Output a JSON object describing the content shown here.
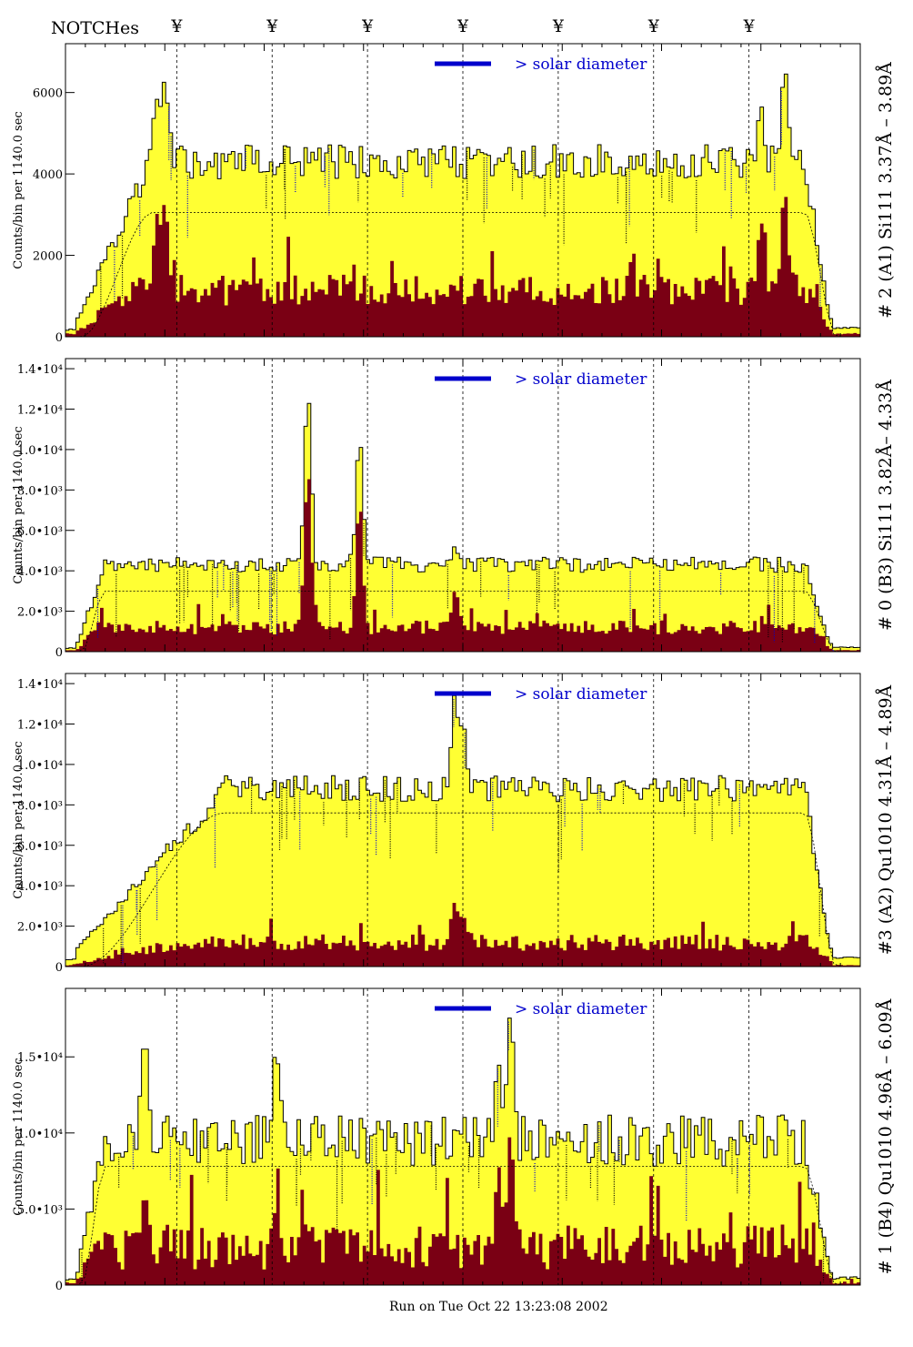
{
  "page": {
    "notches_label": "NOTCHes",
    "notch_marker": "¥",
    "footer": "Run on Tue Oct 22 13:23:08 2002"
  },
  "colors": {
    "total_fill": "#ffff33",
    "excess_fill": "#7a0014",
    "legend_bar": "#0000cc",
    "legend_text": "#0000cc",
    "label_dark": "#000000",
    "label_blue": "#0000cc",
    "label_purple": "#660099"
  },
  "chart_data": [
    {
      "type": "area",
      "panel_label": "# 2 (A1) Si111  3.37Å – 3.89Å",
      "ylabel": "Counts/bin per   1140.0 sec",
      "legend": "> solar diameter",
      "ylim": [
        0,
        7200
      ],
      "yticks": [
        {
          "v": 0,
          "t": "0"
        },
        {
          "v": 2000,
          "t": "2000"
        },
        {
          "v": 4000,
          "t": "4000"
        },
        {
          "v": 6000,
          "t": "6000"
        }
      ],
      "total_level": 4300,
      "total_noise": 420,
      "total_rise_edge": 0.11,
      "excess_level": 1150,
      "excess_noise": 380,
      "envelope_level": 3050,
      "peaks": [
        {
          "x": 0.115,
          "total": 5800,
          "excess": 3000
        },
        {
          "x": 0.125,
          "total": 6300,
          "excess": 3300
        },
        {
          "x": 0.905,
          "total": 6600,
          "excess": 3500
        },
        {
          "x": 0.875,
          "total": 5700,
          "excess": 2800
        }
      ]
    },
    {
      "type": "area",
      "panel_label": "# 0 (B3) Si111  3.82Å– 4.33Å",
      "ylabel": "Counts/bin per   1140.0 sec",
      "legend": "> solar diameter",
      "ylim": [
        0,
        14500
      ],
      "yticks": [
        {
          "v": 0,
          "t": "0"
        },
        {
          "v": 2000,
          "t": "2.0•10³"
        },
        {
          "v": 4000,
          "t": "4.0•10³"
        },
        {
          "v": 6000,
          "t": "6.0•10³"
        },
        {
          "v": 8000,
          "t": "8.0•10³"
        },
        {
          "v": 10000,
          "t": "1.0•10⁴"
        },
        {
          "v": 12000,
          "t": "1.2•10⁴"
        },
        {
          "v": 14000,
          "t": "1.4•10⁴"
        }
      ],
      "total_level": 4300,
      "total_noise": 380,
      "total_rise_edge": 0.05,
      "excess_level": 1200,
      "excess_noise": 350,
      "envelope_level": 3000,
      "peaks": [
        {
          "x": 0.305,
          "total": 12800,
          "excess": 9000
        },
        {
          "x": 0.37,
          "total": 10600,
          "excess": 7400
        },
        {
          "x": 0.49,
          "total": 5200,
          "excess": 3000
        }
      ]
    },
    {
      "type": "area",
      "panel_label": "#3 (A2) Qu1010  4.31Å – 4.89Å",
      "ylabel": "Counts/bin per   1140.0 sec",
      "legend": "> solar diameter",
      "ylim": [
        0,
        14500
      ],
      "yticks": [
        {
          "v": 0,
          "t": "0"
        },
        {
          "v": 2000,
          "t": "2.0•10³"
        },
        {
          "v": 4000,
          "t": "4.0•10³"
        },
        {
          "v": 6000,
          "t": "6.0•10³"
        },
        {
          "v": 8000,
          "t": "8.0•10³"
        },
        {
          "v": 10000,
          "t": "1.0•10⁴"
        },
        {
          "v": 12000,
          "t": "1.2•10⁴"
        },
        {
          "v": 14000,
          "t": "1.4•10⁴"
        }
      ],
      "total_level": 8800,
      "total_noise": 650,
      "total_rise_edge": 0.2,
      "excess_level": 1200,
      "excess_noise": 420,
      "envelope_level": 7600,
      "peaks": [
        {
          "x": 0.49,
          "total": 13500,
          "excess": 3200
        },
        {
          "x": 0.5,
          "total": 12200,
          "excess": 2600
        }
      ]
    },
    {
      "type": "area",
      "panel_label": "# 1 (B4) Qu1010 4.96Å – 6.09Å",
      "ylabel": "Counts/bin per   1140.0 sec",
      "legend": "> solar diameter",
      "ylim": [
        0,
        19500
      ],
      "yticks": [
        {
          "v": 0,
          "t": "0"
        },
        {
          "v": 5000,
          "t": "5.0•10³"
        },
        {
          "v": 10000,
          "t": "1.0•10⁴"
        },
        {
          "v": 15000,
          "t": "1.5•10⁴"
        }
      ],
      "total_level": 9500,
      "total_noise": 1700,
      "total_rise_edge": 0.05,
      "excess_level": 2500,
      "excess_noise": 1500,
      "envelope_level": 7800,
      "peaks": [
        {
          "x": 0.1,
          "total": 16200,
          "excess": 6000
        },
        {
          "x": 0.265,
          "total": 15500,
          "excess": 5000
        },
        {
          "x": 0.56,
          "total": 18000,
          "excess": 10000
        },
        {
          "x": 0.545,
          "total": 14500,
          "excess": 7800
        }
      ]
    }
  ],
  "notch_positions": [
    0.14,
    0.26,
    0.38,
    0.5,
    0.62,
    0.74,
    0.86
  ]
}
